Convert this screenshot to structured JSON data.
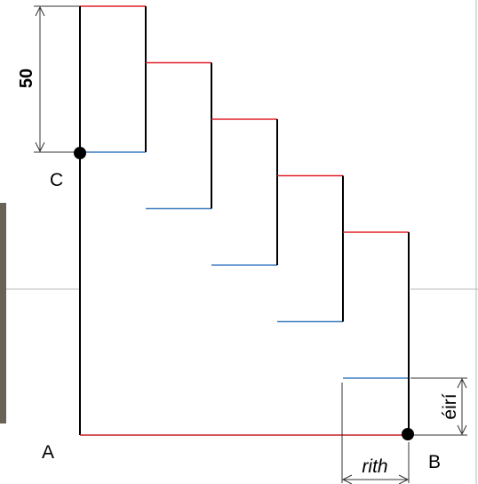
{
  "labels": {
    "point_c": "C",
    "point_a": "A",
    "point_b": "B",
    "height_dimension": "50",
    "rise_dimension": "éirí",
    "run_dimension": "rith"
  },
  "colors": {
    "riser": "#000000",
    "tread_top": "#e0202a",
    "tread_bottom": "#3d7cc0",
    "base_line": "#c4202a",
    "dimension": "#333333",
    "point": "#000000",
    "background_edge": "#b0b0b0"
  },
  "steps": [
    {
      "index": 1
    },
    {
      "index": 2
    },
    {
      "index": 3
    },
    {
      "index": 4
    },
    {
      "index": 5
    }
  ]
}
